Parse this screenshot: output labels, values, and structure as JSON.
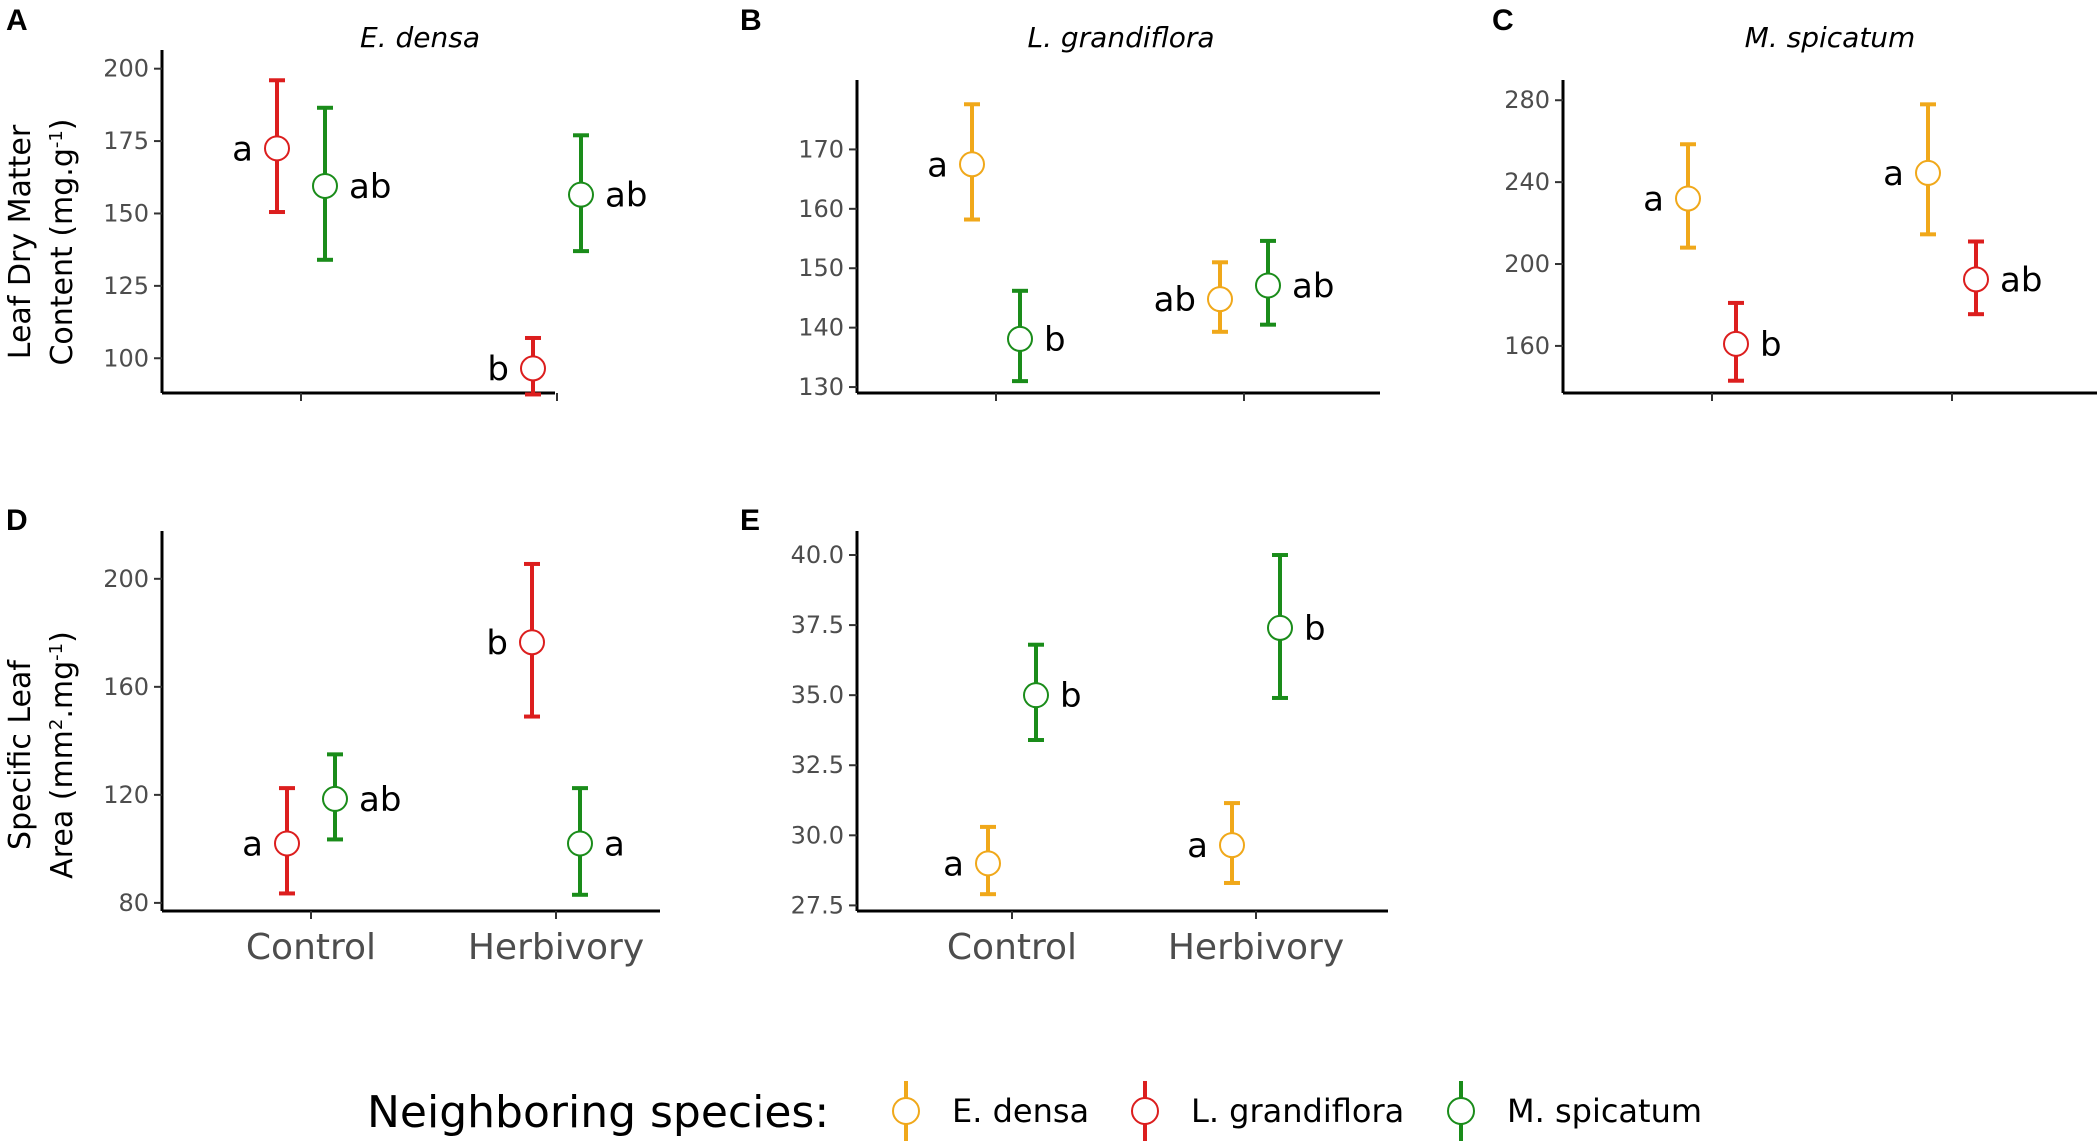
{
  "colors": {
    "E. densa": "#f0a81a",
    "L. grandiflora": "#dc1e1e",
    "M. spicatum": "#1a8c1a"
  },
  "legend": {
    "title": "Neighboring species:",
    "items": [
      "E. densa",
      "L. grandiflora",
      "M. spicatum"
    ]
  },
  "row_titles": {
    "top": [
      "Leaf Dry Matter",
      "Content (mg.g",
      "-1",
      ")"
    ],
    "bottom": [
      "Specific Leaf",
      "Area (mm",
      "2",
      ".mg",
      "-1",
      ")"
    ]
  },
  "chart_data": [
    {
      "id": "A",
      "panel": "A",
      "title": "E. densa",
      "type": "scatter",
      "categories": [
        "Control",
        "Herbivory"
      ],
      "show_x_labels": false,
      "ylim": [
        88,
        203
      ],
      "yticks": [
        100,
        125,
        150,
        175,
        200
      ],
      "series": [
        {
          "name": "L. grandiflora",
          "points": [
            {
              "category": "Control",
              "mean": 172.5,
              "lo": 150.5,
              "hi": 196,
              "label": "a"
            },
            {
              "category": "Herbivory",
              "mean": 96.5,
              "lo": 87.5,
              "hi": 107,
              "label": "b"
            }
          ]
        },
        {
          "name": "M. spicatum",
          "points": [
            {
              "category": "Control",
              "mean": 159.5,
              "lo": 134,
              "hi": 186.5,
              "label": "ab"
            },
            {
              "category": "Herbivory",
              "mean": 156.5,
              "lo": 137,
              "hi": 177,
              "label": "ab"
            }
          ]
        }
      ]
    },
    {
      "id": "B",
      "panel": "B",
      "title": "L. grandiflora",
      "type": "scatter",
      "categories": [
        "Control",
        "Herbivory"
      ],
      "show_x_labels": false,
      "ylim": [
        129,
        180
      ],
      "yticks": [
        130,
        140,
        150,
        160,
        170
      ],
      "series": [
        {
          "name": "E. densa",
          "points": [
            {
              "category": "Control",
              "mean": 167.5,
              "lo": 158.2,
              "hi": 177.6,
              "label": "a"
            },
            {
              "category": "Herbivory",
              "mean": 144.8,
              "lo": 139.3,
              "hi": 151,
              "label": "ab"
            }
          ]
        },
        {
          "name": "M. spicatum",
          "points": [
            {
              "category": "Control",
              "mean": 138.1,
              "lo": 131,
              "hi": 146.2,
              "label": "b"
            },
            {
              "category": "Herbivory",
              "mean": 147.1,
              "lo": 140.5,
              "hi": 154.6,
              "label": "ab"
            }
          ]
        }
      ]
    },
    {
      "id": "C",
      "panel": "C",
      "title": "M. spicatum",
      "type": "scatter",
      "categories": [
        "Control",
        "Herbivory"
      ],
      "show_x_labels": false,
      "ylim": [
        137,
        285
      ],
      "yticks": [
        160,
        200,
        240,
        280
      ],
      "series": [
        {
          "name": "E. densa",
          "points": [
            {
              "category": "Control",
              "mean": 232,
              "lo": 208,
              "hi": 258.5,
              "label": "a"
            },
            {
              "category": "Herbivory",
              "mean": 244.5,
              "lo": 214.5,
              "hi": 278,
              "label": "a"
            }
          ]
        },
        {
          "name": "L. grandiflora",
          "points": [
            {
              "category": "Control",
              "mean": 161,
              "lo": 143,
              "hi": 181,
              "label": "b"
            },
            {
              "category": "Herbivory",
              "mean": 192.5,
              "lo": 175.5,
              "hi": 211,
              "label": "ab"
            }
          ]
        }
      ]
    },
    {
      "id": "D",
      "panel": "D",
      "title": "",
      "type": "scatter",
      "categories": [
        "Control",
        "Herbivory"
      ],
      "show_x_labels": true,
      "ylim": [
        77,
        214
      ],
      "yticks": [
        80,
        120,
        160,
        200
      ],
      "series": [
        {
          "name": "L. grandiflora",
          "points": [
            {
              "category": "Control",
              "mean": 102,
              "lo": 83.5,
              "hi": 122.5,
              "label": "a"
            },
            {
              "category": "Herbivory",
              "mean": 176.5,
              "lo": 149,
              "hi": 205.5,
              "label": "b"
            }
          ]
        },
        {
          "name": "M. spicatum",
          "points": [
            {
              "category": "Control",
              "mean": 118.5,
              "lo": 103.5,
              "hi": 135,
              "label": "ab"
            },
            {
              "category": "Herbivory",
              "mean": 102,
              "lo": 83,
              "hi": 122.5,
              "label": "a"
            }
          ]
        }
      ]
    },
    {
      "id": "E",
      "panel": "E",
      "title": "",
      "type": "scatter",
      "categories": [
        "Control",
        "Herbivory"
      ],
      "show_x_labels": true,
      "ylim": [
        27.3,
        40.5
      ],
      "yticks": [
        27.5,
        30.0,
        32.5,
        35.0,
        37.5,
        40.0
      ],
      "series": [
        {
          "name": "E. densa",
          "points": [
            {
              "category": "Control",
              "mean": 29.0,
              "lo": 27.9,
              "hi": 30.3,
              "label": "a"
            },
            {
              "category": "Herbivory",
              "mean": 29.65,
              "lo": 28.3,
              "hi": 31.15,
              "label": "a"
            }
          ]
        },
        {
          "name": "M. spicatum",
          "points": [
            {
              "category": "Control",
              "mean": 35.0,
              "lo": 33.4,
              "hi": 36.8,
              "label": "b"
            },
            {
              "category": "Herbivory",
              "mean": 37.4,
              "lo": 34.9,
              "hi": 40.0,
              "label": "b"
            }
          ]
        }
      ]
    }
  ]
}
